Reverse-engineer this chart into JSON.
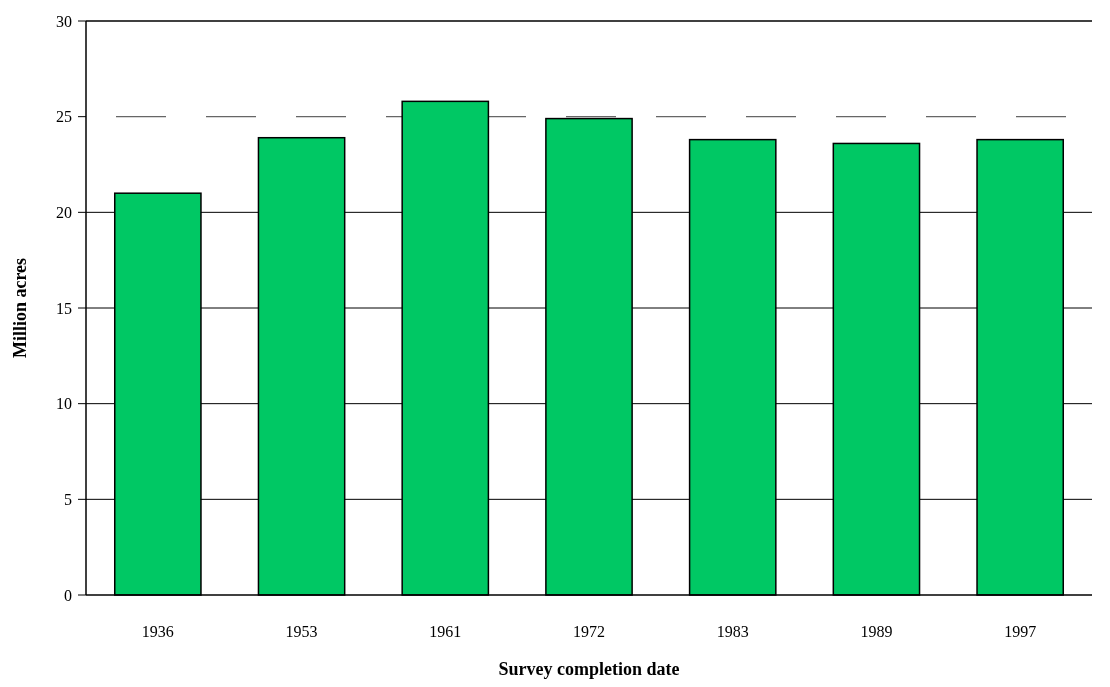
{
  "chart_data": {
    "type": "bar",
    "xlabel": "Survey completion date",
    "ylabel": "Million acres",
    "categories": [
      "1936",
      "1953",
      "1961",
      "1972",
      "1983",
      "1989",
      "1997"
    ],
    "values": [
      21.0,
      23.9,
      25.8,
      24.9,
      23.8,
      23.6,
      23.8
    ],
    "color": "#00c864",
    "ylim": [
      0,
      30
    ],
    "yticks": [
      0,
      5,
      10,
      15,
      20,
      25,
      30
    ],
    "grid": "y",
    "ref_lines": [
      {
        "axis": "y",
        "value": 25,
        "label": null,
        "line_style": "dashed",
        "color": "#666666"
      }
    ]
  }
}
